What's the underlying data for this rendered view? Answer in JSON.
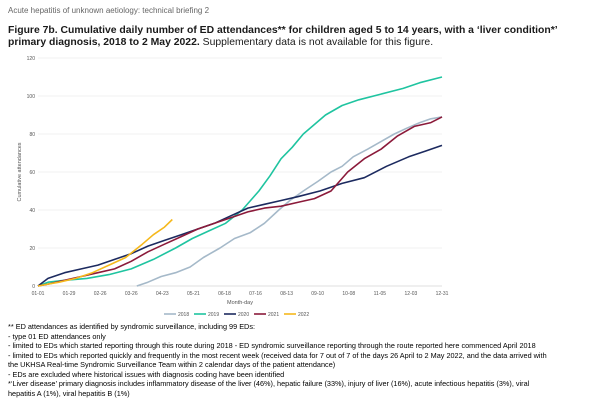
{
  "header": "Acute hepatitis of unknown aetiology: technical briefing 2",
  "title": {
    "bold": "Figure 7b. Cumulative daily number of ED attendances** for children aged 5 to 14 years, with a ‘liver condition*’ primary diagnosis, 2018 to 2 May 2022.",
    "normal": " Supplementary data is not available for this figure."
  },
  "notes": [
    "** ED attendances as identified by syndromic surveillance, including 99 EDs:",
    "- type 01 ED attendances only",
    "- limited to EDs which started reporting through this route during 2018 - ED syndromic surveillance reporting through the route reported here commenced April 2018",
    "- limited to EDs which reported quickly and frequently in the most recent week (received data for 7 out of 7 of the days 26 April to 2 May 2022, and the data arrived with",
    "the UKHSA Real-time Syndromic Surveillance Team within 2 calendar days of the patient attendance)",
    "- EDs are excluded where historical issues with diagnosis coding have been identified",
    "*‘Liver disease’ primary diagnosis includes inflammatory disease of the liver (46%), hepatic failure (33%), injury of liver (16%), acute infectious hepatitis (3%), viral",
    "hepatitis A (1%), viral hepatitis B (1%)"
  ],
  "chart_data": {
    "type": "line",
    "title": "",
    "xlabel": "Month-day",
    "ylabel": "Cumulative attendances",
    "x_ticks": [
      "01-01",
      "01-29",
      "02-26",
      "03-26",
      "04-23",
      "05-21",
      "06-18",
      "07-16",
      "08-13",
      "09-10",
      "10-08",
      "11-05",
      "12-03",
      "12-31"
    ],
    "x_unit": "day of year",
    "xlim": [
      1,
      365
    ],
    "ylim": [
      0,
      120
    ],
    "y_ticks": [
      0,
      20,
      40,
      60,
      80,
      100,
      120
    ],
    "grid": "horizontal",
    "legend_position": "bottom",
    "series": [
      {
        "name": "2018",
        "color": "#a5b9c9",
        "points": [
          [
            90,
            0
          ],
          [
            100,
            2
          ],
          [
            112,
            5
          ],
          [
            125,
            7
          ],
          [
            138,
            10
          ],
          [
            150,
            15
          ],
          [
            165,
            20
          ],
          [
            178,
            25
          ],
          [
            192,
            28
          ],
          [
            205,
            33
          ],
          [
            218,
            40
          ],
          [
            228,
            45
          ],
          [
            240,
            50
          ],
          [
            253,
            55
          ],
          [
            265,
            60
          ],
          [
            275,
            63
          ],
          [
            285,
            68
          ],
          [
            298,
            72
          ],
          [
            310,
            76
          ],
          [
            322,
            80
          ],
          [
            333,
            83
          ],
          [
            345,
            86
          ],
          [
            355,
            88
          ],
          [
            365,
            89
          ]
        ]
      },
      {
        "name": "2019",
        "color": "#1fc4a0",
        "points": [
          [
            1,
            0
          ],
          [
            10,
            2
          ],
          [
            25,
            3
          ],
          [
            45,
            4
          ],
          [
            65,
            6
          ],
          [
            85,
            9
          ],
          [
            105,
            14
          ],
          [
            125,
            20
          ],
          [
            140,
            25
          ],
          [
            155,
            29
          ],
          [
            170,
            33
          ],
          [
            185,
            40
          ],
          [
            200,
            50
          ],
          [
            210,
            58
          ],
          [
            220,
            67
          ],
          [
            230,
            73
          ],
          [
            240,
            80
          ],
          [
            250,
            85
          ],
          [
            260,
            90
          ],
          [
            275,
            95
          ],
          [
            290,
            98
          ],
          [
            310,
            101
          ],
          [
            330,
            104
          ],
          [
            345,
            107
          ],
          [
            365,
            110
          ]
        ]
      },
      {
        "name": "2020",
        "color": "#1c2a5f",
        "points": [
          [
            1,
            0
          ],
          [
            10,
            4
          ],
          [
            25,
            7
          ],
          [
            40,
            9
          ],
          [
            55,
            11
          ],
          [
            70,
            14
          ],
          [
            85,
            17
          ],
          [
            100,
            21
          ],
          [
            115,
            24
          ],
          [
            130,
            27
          ],
          [
            145,
            30
          ],
          [
            160,
            33
          ],
          [
            175,
            37
          ],
          [
            190,
            41
          ],
          [
            205,
            43
          ],
          [
            220,
            45
          ],
          [
            235,
            47
          ],
          [
            255,
            50
          ],
          [
            275,
            54
          ],
          [
            295,
            57
          ],
          [
            315,
            63
          ],
          [
            335,
            68
          ],
          [
            350,
            71
          ],
          [
            365,
            74
          ]
        ]
      },
      {
        "name": "2021",
        "color": "#8b1a3a",
        "points": [
          [
            1,
            0
          ],
          [
            10,
            1
          ],
          [
            25,
            3
          ],
          [
            40,
            5
          ],
          [
            55,
            7
          ],
          [
            70,
            9
          ],
          [
            85,
            13
          ],
          [
            100,
            18
          ],
          [
            115,
            22
          ],
          [
            130,
            26
          ],
          [
            145,
            30
          ],
          [
            160,
            33
          ],
          [
            175,
            36
          ],
          [
            190,
            39
          ],
          [
            205,
            41
          ],
          [
            220,
            42
          ],
          [
            235,
            44
          ],
          [
            250,
            46
          ],
          [
            265,
            50
          ],
          [
            280,
            60
          ],
          [
            295,
            67
          ],
          [
            310,
            72
          ],
          [
            325,
            79
          ],
          [
            340,
            84
          ],
          [
            355,
            86
          ],
          [
            365,
            89
          ]
        ]
      },
      {
        "name": "2022",
        "color": "#f5b81c",
        "points": [
          [
            1,
            0
          ],
          [
            10,
            1
          ],
          [
            20,
            2
          ],
          [
            35,
            4
          ],
          [
            50,
            7
          ],
          [
            65,
            11
          ],
          [
            80,
            15
          ],
          [
            95,
            22
          ],
          [
            105,
            27
          ],
          [
            115,
            31
          ],
          [
            122,
            35
          ]
        ]
      }
    ]
  }
}
